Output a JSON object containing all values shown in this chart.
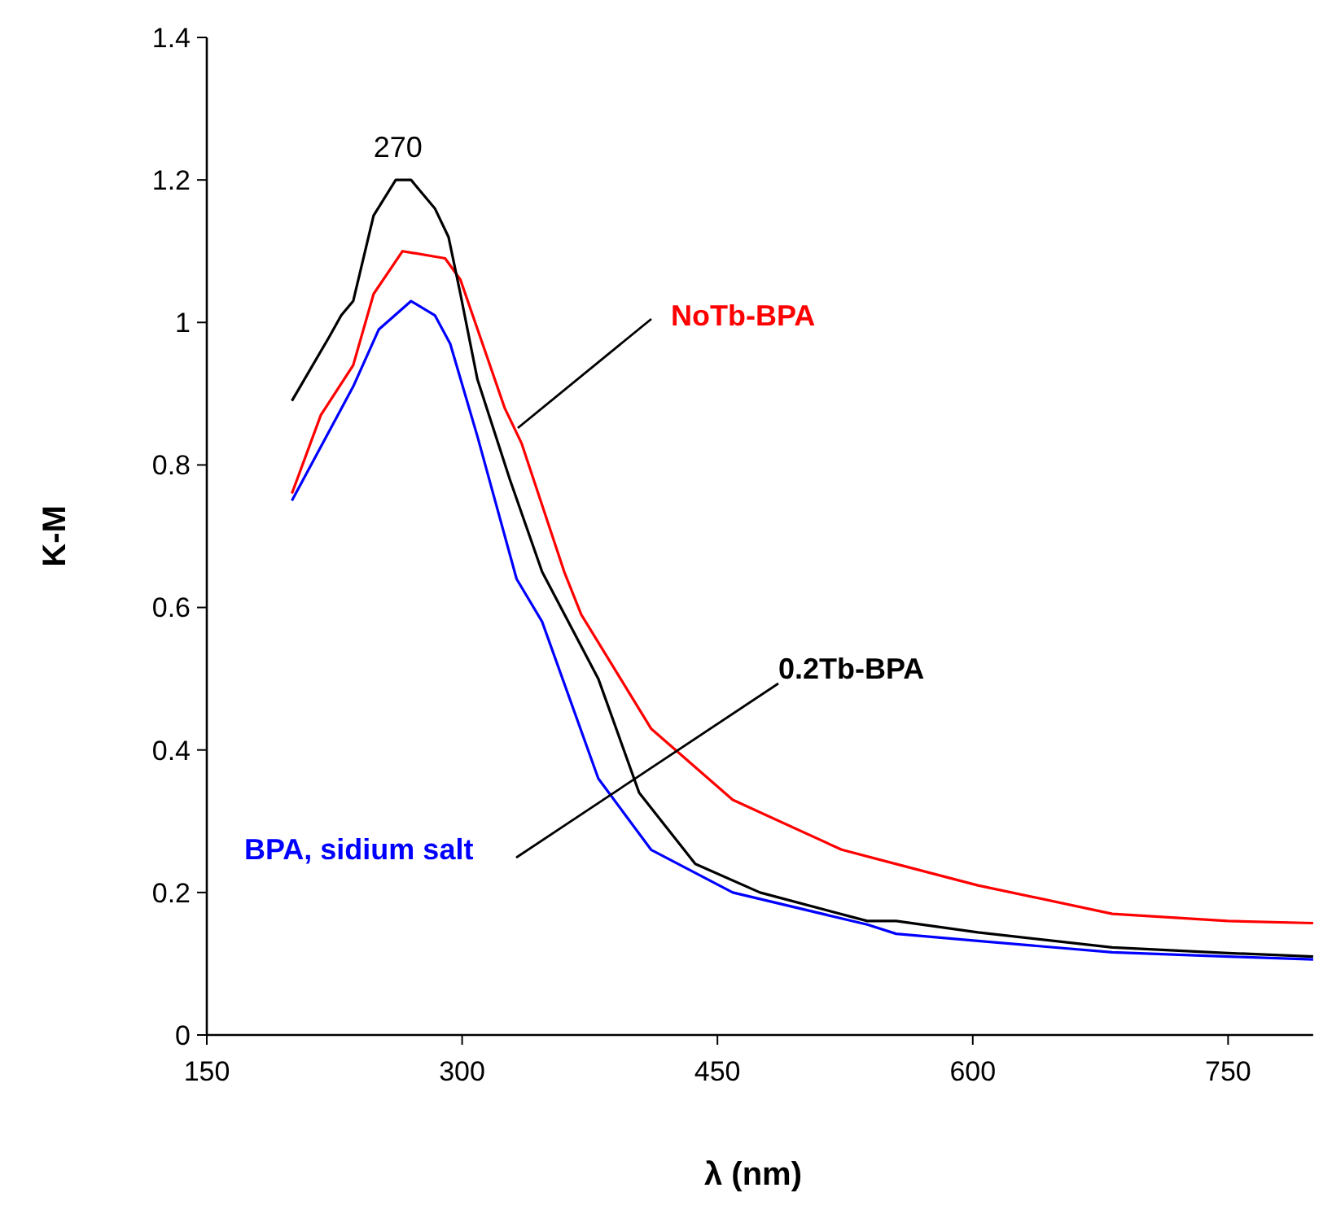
{
  "chart_data": {
    "type": "line",
    "xlabel": "λ (nm)",
    "ylabel": "K-M",
    "xlim": [
      150,
      800
    ],
    "ylim": [
      0,
      1.4
    ],
    "xticks": [
      150,
      300,
      450,
      600,
      750
    ],
    "yticks": [
      0,
      0.2,
      0.4,
      0.6,
      0.8,
      1,
      1.2,
      1.4
    ],
    "grid": false,
    "marker": "none",
    "line_style": "solid",
    "annotations": [
      {
        "text": "270",
        "x": 270,
        "y": 1.2
      }
    ],
    "series": [
      {
        "name": "NoTb-BPA",
        "color": "#ff0000",
        "x": [
          200,
          217,
          236,
          248,
          265,
          290,
          299,
          312,
          325,
          335,
          360,
          370,
          411,
          459,
          523,
          555,
          603,
          682,
          750,
          800
        ],
        "values": [
          0.76,
          0.87,
          0.94,
          1.04,
          1.1,
          1.09,
          1.06,
          0.97,
          0.88,
          0.83,
          0.65,
          0.59,
          0.43,
          0.33,
          0.26,
          0.24,
          0.21,
          0.17,
          0.16,
          0.157
        ]
      },
      {
        "name": "0.2Tb-BPA",
        "color": "#000000",
        "x": [
          200,
          222,
          229,
          236,
          248,
          261,
          270,
          284,
          292,
          299,
          309,
          328,
          347,
          380,
          404,
          437,
          475,
          538,
          555,
          603,
          682,
          750,
          800
        ],
        "values": [
          0.89,
          0.98,
          1.01,
          1.03,
          1.15,
          1.2,
          1.2,
          1.16,
          1.12,
          1.04,
          0.92,
          0.78,
          0.65,
          0.5,
          0.34,
          0.24,
          0.2,
          0.16,
          0.16,
          0.144,
          0.123,
          0.115,
          0.11
        ]
      },
      {
        "name": "BPA, sidium salt",
        "color": "#0000ff",
        "x": [
          200,
          236,
          251,
          270,
          284,
          293,
          309,
          332,
          347,
          380,
          411,
          459,
          538,
          555,
          603,
          682,
          750,
          800
        ],
        "values": [
          0.75,
          0.91,
          0.99,
          1.03,
          1.01,
          0.97,
          0.84,
          0.64,
          0.58,
          0.36,
          0.26,
          0.2,
          0.155,
          0.142,
          0.132,
          0.116,
          0.11,
          0.106
        ]
      }
    ]
  }
}
